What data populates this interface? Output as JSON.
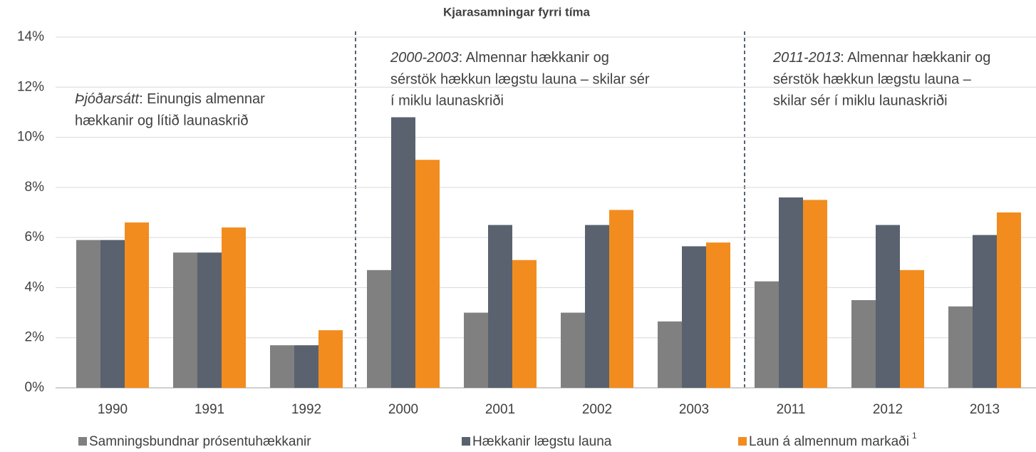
{
  "chart_data": {
    "type": "bar",
    "title": "Kjarasamningar fyrri tíma",
    "categories": [
      "1990",
      "1991",
      "1992",
      "2000",
      "2001",
      "2002",
      "2003",
      "2011",
      "2012",
      "2013"
    ],
    "series": [
      {
        "name": "Samningsbundnar prósentuhækkanir",
        "color": "#808080",
        "values": [
          5.9,
          5.4,
          1.7,
          4.7,
          3.0,
          3.0,
          2.65,
          4.25,
          3.5,
          3.25
        ]
      },
      {
        "name": "Hækkanir lægstu launa",
        "color": "#59626e",
        "values": [
          5.9,
          5.4,
          1.7,
          10.8,
          6.5,
          6.5,
          5.65,
          7.6,
          6.5,
          6.1
        ]
      },
      {
        "name": "Laun á almennum markaði",
        "color": "#f28c1e",
        "values": [
          6.6,
          6.4,
          2.3,
          9.1,
          5.1,
          7.1,
          5.8,
          7.5,
          4.7,
          7.0
        ]
      }
    ],
    "legend_note": "1",
    "ylim": [
      0,
      14
    ],
    "yticks": [
      {
        "value": 0,
        "label": "0%"
      },
      {
        "value": 2,
        "label": "2%"
      },
      {
        "value": 4,
        "label": "4%"
      },
      {
        "value": 6,
        "label": "6%"
      },
      {
        "value": 8,
        "label": "8%"
      },
      {
        "value": 10,
        "label": "10%"
      },
      {
        "value": 12,
        "label": "12%"
      },
      {
        "value": 14,
        "label": "14%"
      }
    ],
    "grid": true,
    "annotations": [
      {
        "emphasis": "Þjóðarsátt",
        "lines": [
          ": Einungis almennar",
          "hækkanir og lítið launaskrið"
        ]
      },
      {
        "emphasis": "2000-2003",
        "lines": [
          ": Almennar hækkanir og",
          "sérstök hækkun lægstu launa – skilar sér",
          "í miklu launaskriði"
        ]
      },
      {
        "emphasis": "2011-2013",
        "lines": [
          ": Almennar hækkanir og",
          "sérstök hækkun lægstu launa –",
          "skilar sér í miklu launaskriði"
        ]
      }
    ]
  }
}
